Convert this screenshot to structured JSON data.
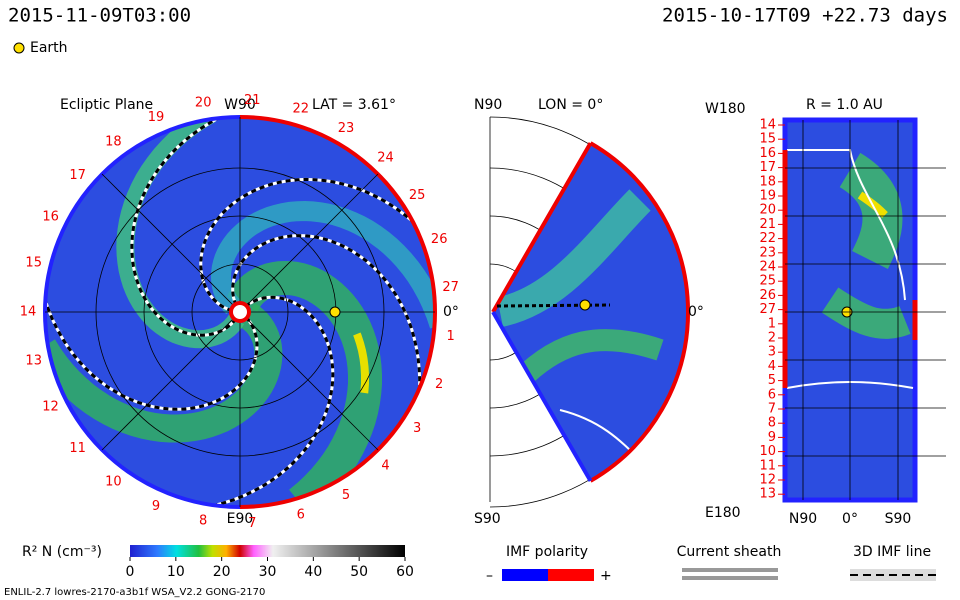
{
  "header": {
    "time": "2015-11-09T03:00",
    "run": "2015-10-17T09 +22.73 days",
    "earth_legend": "Earth"
  },
  "ecliptic": {
    "title": "Ecliptic Plane",
    "top": "W90",
    "lat": "LAT = 3.61°",
    "bottom": "E90",
    "right": "0°",
    "carrington": [
      1,
      2,
      3,
      4,
      5,
      6,
      7,
      8,
      9,
      10,
      11,
      12,
      13,
      14,
      15,
      16,
      17,
      18,
      19,
      20,
      21,
      22,
      23,
      24,
      25,
      26,
      27
    ]
  },
  "meridional": {
    "top": "N90",
    "lon": "LON = 0°",
    "right": "0°",
    "bottom": "S90"
  },
  "radial": {
    "top_left": "W180",
    "r": "R = 1.0 AU",
    "bottom_left": "E180",
    "bottom_axis": [
      "N90",
      "0°",
      "S90"
    ],
    "rows": [
      14,
      15,
      16,
      17,
      18,
      19,
      20,
      21,
      22,
      23,
      24,
      25,
      26,
      27,
      1,
      2,
      3,
      4,
      5,
      6,
      7,
      8,
      9,
      10,
      11,
      12,
      13
    ]
  },
  "colorbar": {
    "label": "R² N (cm⁻³)",
    "lim": [
      0,
      60
    ],
    "ticks": [
      0,
      10,
      20,
      30,
      40,
      50,
      60
    ]
  },
  "legends": {
    "polarity": "IMF polarity",
    "minus": "–",
    "plus": "+",
    "sheath": "Current sheath",
    "imf_line": "3D IMF line"
  },
  "footer": "ENLIL-2.7 lowres-2170-a3b1f WSA_V2.2 GONG-2170"
}
